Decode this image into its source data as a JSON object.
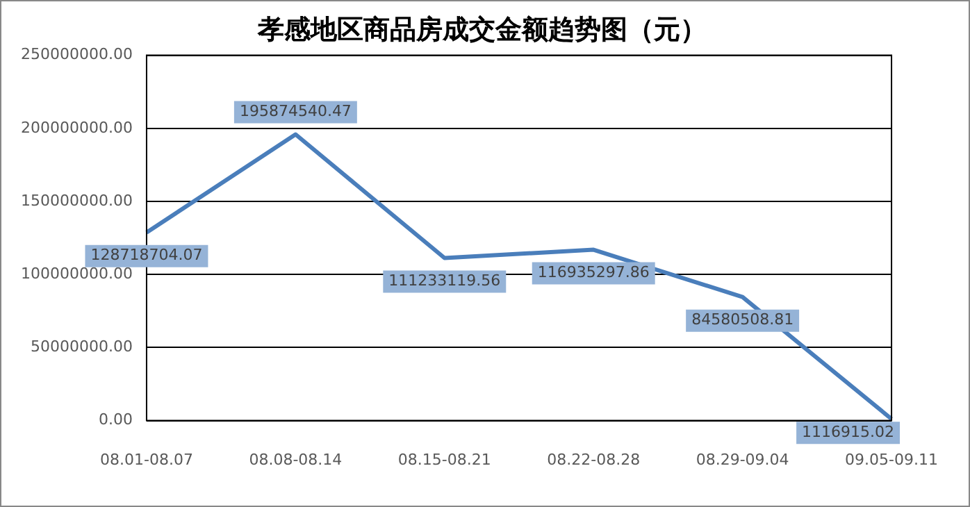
{
  "chart_data": {
    "type": "line",
    "title": "孝感地区商品房成交金额趋势图（元）",
    "categories": [
      "08.01-08.07",
      "08.08-08.14",
      "08.15-08.21",
      "08.22-08.28",
      "08.29-09.04",
      "09.05-09.11"
    ],
    "series": [
      {
        "color": "#4a7ebb",
        "values": [
          128718704.07,
          195874540.47,
          111233119.56,
          116935297.86,
          84580508.81,
          1116915.02
        ],
        "value_labels": [
          "128718704.07",
          "195874540.47",
          "111233119.56",
          "116935297.86",
          "84580508.81",
          "1116915.02"
        ]
      }
    ],
    "ylim": [
      0,
      250000000
    ],
    "yticks": [
      {
        "value": 0,
        "label": "0.00"
      },
      {
        "value": 50000000,
        "label": "50000000.00"
      },
      {
        "value": 100000000,
        "label": "100000000.00"
      },
      {
        "value": 150000000,
        "label": "150000000.00"
      },
      {
        "value": 200000000,
        "label": "200000000.00"
      },
      {
        "value": 250000000,
        "label": "250000000.00"
      }
    ],
    "grid": "y",
    "legend": false,
    "marker": "none",
    "line_style": "solid"
  }
}
